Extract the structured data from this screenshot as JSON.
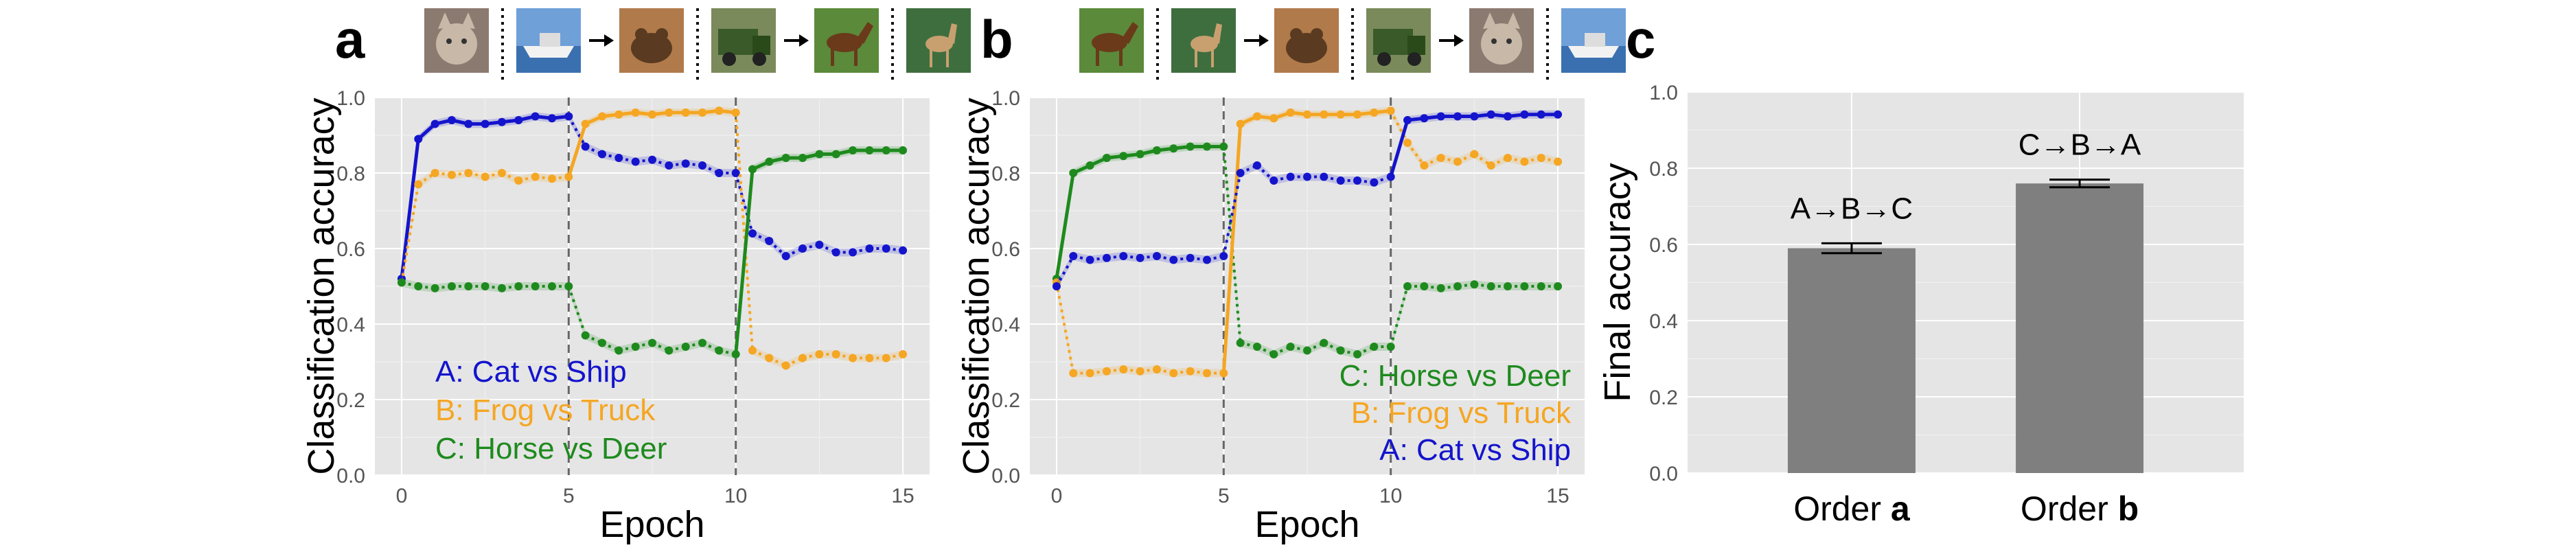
{
  "panels": {
    "a": "a",
    "b": "b",
    "c": "c"
  },
  "colors": {
    "A": "#1414cc",
    "B": "#f5a623",
    "C": "#1e8a1e",
    "bar": "#7f7f7f",
    "plot_bg": "#e5e5e5"
  },
  "chart_data": [
    {
      "type": "line",
      "panel": "a",
      "xlabel": "Epoch",
      "ylabel": "Classification accuracy",
      "xlim": [
        -0.8,
        15.8
      ],
      "ylim": [
        0.0,
        1.0
      ],
      "xticks": [
        0,
        5,
        10,
        15
      ],
      "yticks": [
        0.0,
        0.2,
        0.4,
        0.6,
        0.8,
        1.0
      ],
      "task_switches": [
        5,
        10
      ],
      "image_sequence": [
        "cat",
        "ship",
        "frog",
        "truck",
        "horse",
        "deer"
      ],
      "legend_placement": "bottom-left",
      "x": [
        0,
        0.5,
        1,
        1.5,
        2,
        2.5,
        3,
        3.5,
        4,
        4.5,
        5,
        5.5,
        6,
        6.5,
        7,
        7.5,
        8,
        8.5,
        9,
        9.5,
        10,
        10.5,
        11,
        11.5,
        12,
        12.5,
        13,
        13.5,
        14,
        14.5,
        15
      ],
      "series": [
        {
          "name": "A: Cat vs Ship",
          "key": "A",
          "values": [
            0.52,
            0.89,
            0.93,
            0.94,
            0.93,
            0.93,
            0.935,
            0.94,
            0.95,
            0.945,
            0.95,
            0.87,
            0.85,
            0.84,
            0.83,
            0.835,
            0.82,
            0.825,
            0.82,
            0.8,
            0.8,
            0.64,
            0.62,
            0.58,
            0.6,
            0.61,
            0.59,
            0.59,
            0.6,
            0.6,
            0.595
          ]
        },
        {
          "name": "B: Frog vs Truck",
          "key": "B",
          "values": [
            0.51,
            0.77,
            0.8,
            0.795,
            0.8,
            0.79,
            0.8,
            0.78,
            0.79,
            0.785,
            0.79,
            0.93,
            0.95,
            0.955,
            0.96,
            0.955,
            0.96,
            0.96,
            0.96,
            0.965,
            0.96,
            0.33,
            0.31,
            0.29,
            0.31,
            0.32,
            0.32,
            0.31,
            0.31,
            0.31,
            0.32
          ]
        },
        {
          "name": "C: Horse vs Deer",
          "key": "C",
          "values": [
            0.51,
            0.5,
            0.495,
            0.5,
            0.5,
            0.5,
            0.495,
            0.5,
            0.5,
            0.5,
            0.5,
            0.37,
            0.35,
            0.33,
            0.34,
            0.35,
            0.33,
            0.34,
            0.35,
            0.33,
            0.32,
            0.81,
            0.83,
            0.84,
            0.84,
            0.85,
            0.85,
            0.86,
            0.86,
            0.86,
            0.86
          ]
        }
      ]
    },
    {
      "type": "line",
      "panel": "b",
      "xlabel": "Epoch",
      "ylabel": "Classification accuracy",
      "xlim": [
        -0.8,
        15.8
      ],
      "ylim": [
        0.0,
        1.0
      ],
      "xticks": [
        0,
        5,
        10,
        15
      ],
      "yticks": [
        0.0,
        0.2,
        0.4,
        0.6,
        0.8,
        1.0
      ],
      "task_switches": [
        5,
        10
      ],
      "image_sequence": [
        "horse",
        "deer",
        "frog",
        "truck",
        "cat",
        "ship"
      ],
      "legend_placement": "bottom-right",
      "x": [
        0,
        0.5,
        1,
        1.5,
        2,
        2.5,
        3,
        3.5,
        4,
        4.5,
        5,
        5.5,
        6,
        6.5,
        7,
        7.5,
        8,
        8.5,
        9,
        9.5,
        10,
        10.5,
        11,
        11.5,
        12,
        12.5,
        13,
        13.5,
        14,
        14.5,
        15
      ],
      "series": [
        {
          "name": "C: Horse vs Deer",
          "key": "C",
          "values": [
            0.52,
            0.8,
            0.82,
            0.84,
            0.845,
            0.85,
            0.86,
            0.865,
            0.87,
            0.87,
            0.87,
            0.35,
            0.34,
            0.32,
            0.34,
            0.33,
            0.35,
            0.33,
            0.32,
            0.34,
            0.34,
            0.5,
            0.5,
            0.495,
            0.5,
            0.505,
            0.5,
            0.5,
            0.5,
            0.5,
            0.5
          ]
        },
        {
          "name": "B: Frog vs Truck",
          "key": "B",
          "values": [
            0.51,
            0.27,
            0.27,
            0.275,
            0.28,
            0.275,
            0.28,
            0.27,
            0.275,
            0.27,
            0.27,
            0.93,
            0.95,
            0.945,
            0.96,
            0.955,
            0.955,
            0.955,
            0.955,
            0.96,
            0.965,
            0.88,
            0.82,
            0.84,
            0.83,
            0.85,
            0.82,
            0.84,
            0.83,
            0.84,
            0.83
          ]
        },
        {
          "name": "A: Cat vs Ship",
          "key": "A",
          "values": [
            0.5,
            0.58,
            0.57,
            0.575,
            0.58,
            0.575,
            0.58,
            0.57,
            0.575,
            0.57,
            0.58,
            0.8,
            0.82,
            0.78,
            0.79,
            0.79,
            0.79,
            0.78,
            0.78,
            0.775,
            0.79,
            0.94,
            0.945,
            0.95,
            0.95,
            0.95,
            0.955,
            0.95,
            0.955,
            0.955,
            0.955
          ]
        }
      ]
    },
    {
      "type": "bar",
      "panel": "c",
      "ylabel": "Final accuracy",
      "ylim": [
        0.0,
        1.0
      ],
      "yticks": [
        0.0,
        0.2,
        0.4,
        0.6,
        0.8,
        1.0
      ],
      "categories": [
        {
          "prefix": "Order ",
          "bold": "a"
        },
        {
          "prefix": "Order ",
          "bold": "b"
        }
      ],
      "values": [
        0.59,
        0.76
      ],
      "errors": [
        0.013,
        0.01
      ],
      "bar_labels": [
        "A→B→C",
        "C→B→A"
      ]
    }
  ]
}
